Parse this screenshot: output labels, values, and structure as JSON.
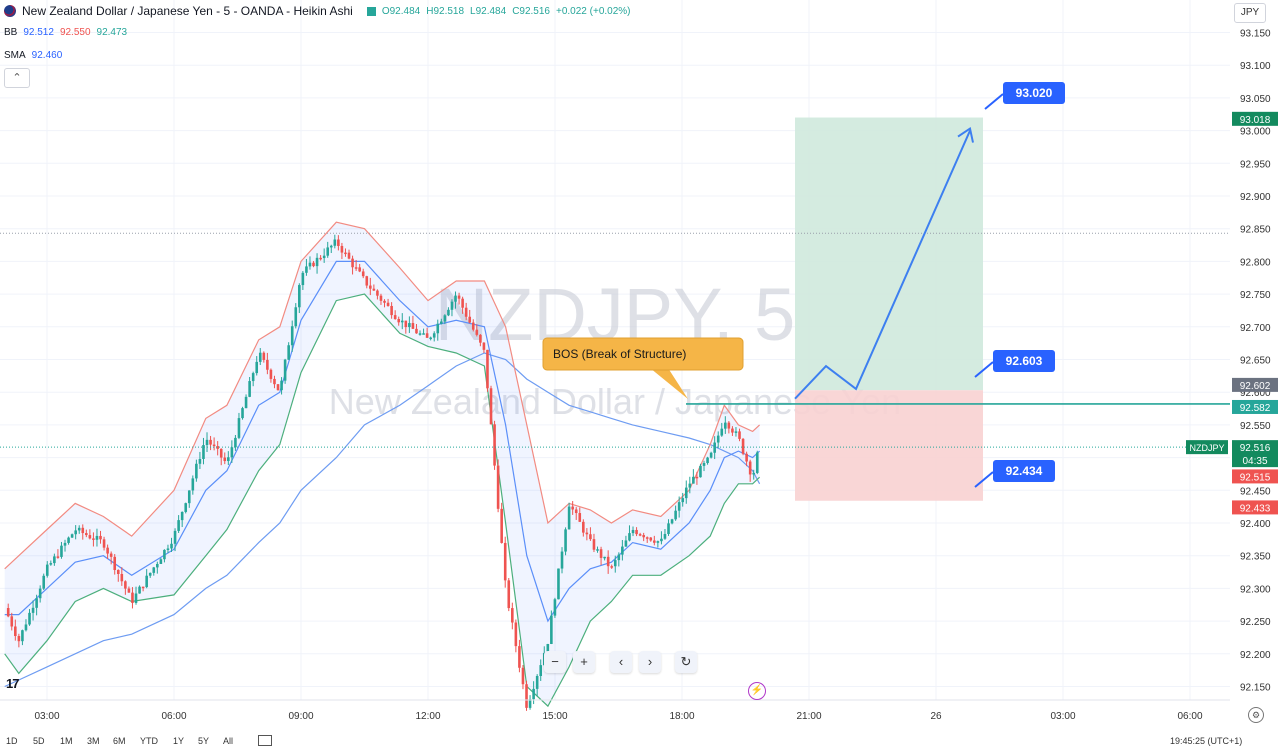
{
  "header": {
    "title": "New Zealand Dollar / Japanese Yen - 5 - OANDA - Heikin Ashi",
    "ohlc": {
      "o": "O92.484",
      "h": "H92.518",
      "l": "L92.484",
      "c": "C92.516",
      "chg": "+0.022 (+0.02%)"
    },
    "currency_button": "JPY",
    "collapse_icon": "chevron-up-icon"
  },
  "indicators": {
    "bb": {
      "label": "BB",
      "basis": "92.512",
      "upper": "92.550",
      "lower": "92.473"
    },
    "sma": {
      "label": "SMA",
      "value": "92.460"
    }
  },
  "watermark": {
    "symbol": "NZDJPY, 5",
    "name": "New Zealand Dollar / Japanese Yen"
  },
  "annotations": {
    "bos_label": "BOS (Break of Structure)",
    "target": "93.020",
    "entry": "92.603",
    "stop": "92.434"
  },
  "price_tags": {
    "tp": "93.018",
    "entry_a": "92.602",
    "entry_b": "92.582",
    "symbol": "NZDJPY",
    "last": "92.516",
    "countdown": "04:35",
    "bb_low": "92.515",
    "sl": "92.433",
    "hidden_tick": "92.450"
  },
  "controls": {
    "minus": "−",
    "plus": "+",
    "prev": "‹",
    "next": "›",
    "reset": "↻",
    "lightning": "⚡",
    "settings": "⚙",
    "logo": "17"
  },
  "bottom_bar": {
    "items": [
      "1D",
      "5D",
      "1M",
      "3M",
      "6M",
      "YTD",
      "1Y",
      "5Y",
      "All"
    ],
    "right": "19:45:25 (UTC+1)"
  },
  "colors": {
    "up": "#26a69a",
    "down": "#ef5350",
    "bb_upper": "#f28b82",
    "bb_basis": "#5b8ff9",
    "bb_lower": "#4caf7d",
    "sma": "#6e9cf2",
    "accent": "#2962ff",
    "profit": "#cfe9dd",
    "loss": "#f8d2d2"
  },
  "chart_data": {
    "type": "candlestick",
    "title": "New Zealand Dollar / Japanese Yen - 5 - OANDA - Heikin Ashi",
    "ylim": [
      92.1,
      93.2
    ],
    "y_ticks": [
      "93.150",
      "93.100",
      "93.050",
      "93.000",
      "92.950",
      "92.900",
      "92.850",
      "92.800",
      "92.750",
      "92.700",
      "92.650",
      "92.600",
      "92.550",
      "92.500",
      "92.450",
      "92.400",
      "92.350",
      "92.300",
      "92.250",
      "92.200",
      "92.150"
    ],
    "x_ticks": [
      "03:00",
      "06:00",
      "09:00",
      "12:00",
      "15:00",
      "18:00",
      "21:00",
      "26",
      "03:00",
      "06:00"
    ],
    "price_path": [
      {
        "t": "02:00",
        "v": 92.27
      },
      {
        "t": "02:20",
        "v": 92.22
      },
      {
        "t": "03:00",
        "v": 92.33
      },
      {
        "t": "03:40",
        "v": 92.39
      },
      {
        "t": "04:20",
        "v": 92.37
      },
      {
        "t": "05:00",
        "v": 92.28
      },
      {
        "t": "06:00",
        "v": 92.38
      },
      {
        "t": "06:45",
        "v": 92.53
      },
      {
        "t": "07:15",
        "v": 92.49
      },
      {
        "t": "08:00",
        "v": 92.66
      },
      {
        "t": "08:30",
        "v": 92.6
      },
      {
        "t": "09:00",
        "v": 92.78
      },
      {
        "t": "09:50",
        "v": 92.83
      },
      {
        "t": "10:30",
        "v": 92.77
      },
      {
        "t": "11:20",
        "v": 92.71
      },
      {
        "t": "12:00",
        "v": 92.68
      },
      {
        "t": "12:40",
        "v": 92.75
      },
      {
        "t": "13:20",
        "v": 92.66
      },
      {
        "t": "13:50",
        "v": 92.3
      },
      {
        "t": "14:20",
        "v": 92.12
      },
      {
        "t": "14:50",
        "v": 92.22
      },
      {
        "t": "15:20",
        "v": 92.43
      },
      {
        "t": "15:50",
        "v": 92.37
      },
      {
        "t": "16:20",
        "v": 92.33
      },
      {
        "t": "16:50",
        "v": 92.39
      },
      {
        "t": "17:30",
        "v": 92.37
      },
      {
        "t": "18:10",
        "v": 92.46
      },
      {
        "t": "18:40",
        "v": 92.5
      },
      {
        "t": "19:00",
        "v": 92.56
      },
      {
        "t": "19:20",
        "v": 92.53
      },
      {
        "t": "19:40",
        "v": 92.47
      },
      {
        "t": "19:50",
        "v": 92.52
      }
    ],
    "bb_upper": [
      92.33,
      92.35,
      92.39,
      92.43,
      92.41,
      92.38,
      92.45,
      92.56,
      92.58,
      92.68,
      92.7,
      92.8,
      92.86,
      92.85,
      92.79,
      92.74,
      92.77,
      92.77,
      92.7,
      92.55,
      92.4,
      92.43,
      92.42,
      92.4,
      92.42,
      92.41,
      92.45,
      92.52,
      92.58,
      92.55,
      92.54,
      92.55
    ],
    "bb_basis": [
      92.26,
      92.26,
      92.3,
      92.34,
      92.35,
      92.32,
      92.36,
      92.45,
      92.48,
      92.58,
      92.6,
      92.71,
      92.8,
      92.8,
      92.74,
      92.7,
      92.71,
      92.7,
      92.55,
      92.35,
      92.25,
      92.3,
      92.33,
      92.34,
      92.37,
      92.36,
      92.4,
      92.45,
      92.5,
      92.51,
      92.5,
      92.51
    ],
    "bb_lower": [
      92.2,
      92.17,
      92.22,
      92.28,
      92.3,
      92.28,
      92.29,
      92.35,
      92.39,
      92.48,
      92.52,
      92.63,
      92.74,
      92.75,
      92.69,
      92.67,
      92.66,
      92.64,
      92.4,
      92.15,
      92.12,
      92.18,
      92.25,
      92.28,
      92.32,
      92.32,
      92.35,
      92.38,
      92.43,
      92.46,
      92.46,
      92.47
    ],
    "sma": [
      92.15,
      92.16,
      92.18,
      92.2,
      92.22,
      92.23,
      92.26,
      92.3,
      92.32,
      92.37,
      92.4,
      92.45,
      92.5,
      92.55,
      92.58,
      92.61,
      92.64,
      92.66,
      92.65,
      92.62,
      92.6,
      92.58,
      92.57,
      92.56,
      92.55,
      92.54,
      92.53,
      92.52,
      92.51,
      92.5,
      92.48,
      92.46
    ],
    "position": {
      "entry": 92.603,
      "stop": 92.434,
      "target": 93.02
    },
    "horizontal_line": 92.582,
    "dotted_line": 92.843,
    "last_price_line": 92.516
  }
}
